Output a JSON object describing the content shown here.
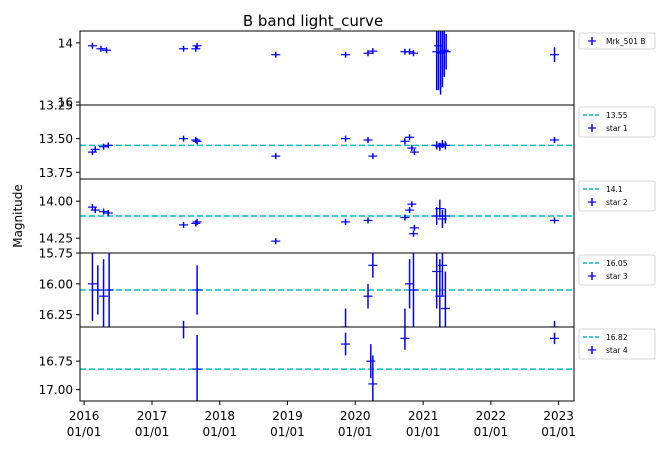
{
  "figure": {
    "title": "B band light_curve",
    "ylabel": "Magnitude"
  },
  "chart_data": [
    {
      "type": "scatter",
      "panel": "Mrk_501 B",
      "ylim": [
        16.1,
        13.6
      ],
      "yticks": [
        14,
        16
      ],
      "grid": false,
      "legend_position": "outside-right",
      "series": [
        {
          "name": "Mrk_501 B",
          "color": "#0000ff",
          "marker": "+",
          "points": [
            {
              "x": "2016-02-15",
              "y": 14.1,
              "yerr": 0.02
            },
            {
              "x": "2016-04-01",
              "y": 14.2,
              "yerr": 0.02
            },
            {
              "x": "2016-05-01",
              "y": 14.25,
              "yerr": 0.02
            },
            {
              "x": "2017-06-20",
              "y": 14.2,
              "yerr": 0.02
            },
            {
              "x": "2017-08-25",
              "y": 14.2,
              "yerr": 0.02
            },
            {
              "x": "2017-09-01",
              "y": 14.1,
              "yerr": 0.02
            },
            {
              "x": "2018-10-30",
              "y": 14.4,
              "yerr": 0.02
            },
            {
              "x": "2019-11-10",
              "y": 14.4,
              "yerr": 0.02
            },
            {
              "x": "2020-03-10",
              "y": 14.35,
              "yerr": 0.02
            },
            {
              "x": "2020-04-05",
              "y": 14.28,
              "yerr": 0.02
            },
            {
              "x": "2020-09-25",
              "y": 14.3,
              "yerr": 0.02
            },
            {
              "x": "2020-10-20",
              "y": 14.3,
              "yerr": 0.02
            },
            {
              "x": "2020-11-10",
              "y": 14.35,
              "yerr": 0.02
            },
            {
              "x": "2021-03-15",
              "y": 14.3,
              "yerr": 1.3
            },
            {
              "x": "2021-03-25",
              "y": 14.1,
              "yerr": 1.5
            },
            {
              "x": "2021-04-05",
              "y": 14.35,
              "yerr": 1.4
            },
            {
              "x": "2021-04-15",
              "y": 14.3,
              "yerr": 1.2
            },
            {
              "x": "2021-04-25",
              "y": 14.25,
              "yerr": 0.9
            },
            {
              "x": "2021-05-05",
              "y": 14.3,
              "yerr": 0.6
            },
            {
              "x": "2022-12-10",
              "y": 14.4,
              "yerr": 0.25
            }
          ]
        }
      ]
    },
    {
      "type": "scatter",
      "panel": "star 1",
      "ylim": [
        13.8,
        13.25
      ],
      "yticks": [
        13.25,
        13.5,
        13.75
      ],
      "ytick_labels": [
        "13.25",
        "13.50",
        "13.75"
      ],
      "grid": false,
      "legend_position": "outside-right",
      "hline": {
        "label": "13.55",
        "y": 13.55,
        "color": "#00bfbf",
        "style": "dashed"
      },
      "series": [
        {
          "name": "star 1",
          "color": "#0000ff",
          "marker": "+",
          "points": [
            {
              "x": "2016-02-15",
              "y": 13.6,
              "yerr": 0.02
            },
            {
              "x": "2016-03-01",
              "y": 13.58,
              "yerr": 0.02
            },
            {
              "x": "2016-04-15",
              "y": 13.56,
              "yerr": 0.02
            },
            {
              "x": "2016-05-10",
              "y": 13.55,
              "yerr": 0.02
            },
            {
              "x": "2017-06-20",
              "y": 13.5,
              "yerr": 0.02
            },
            {
              "x": "2017-08-25",
              "y": 13.51,
              "yerr": 0.02
            },
            {
              "x": "2017-09-01",
              "y": 13.52,
              "yerr": 0.02
            },
            {
              "x": "2018-10-30",
              "y": 13.63,
              "yerr": 0.02
            },
            {
              "x": "2019-11-10",
              "y": 13.5,
              "yerr": 0.02
            },
            {
              "x": "2020-03-10",
              "y": 13.51,
              "yerr": 0.02
            },
            {
              "x": "2020-04-05",
              "y": 13.63,
              "yerr": 0.02
            },
            {
              "x": "2020-09-25",
              "y": 13.52,
              "yerr": 0.02
            },
            {
              "x": "2020-10-20",
              "y": 13.49,
              "yerr": 0.02
            },
            {
              "x": "2020-11-01",
              "y": 13.57,
              "yerr": 0.02
            },
            {
              "x": "2020-11-15",
              "y": 13.6,
              "yerr": 0.02
            },
            {
              "x": "2021-03-15",
              "y": 13.55,
              "yerr": 0.03
            },
            {
              "x": "2021-04-01",
              "y": 13.56,
              "yerr": 0.03
            },
            {
              "x": "2021-04-15",
              "y": 13.54,
              "yerr": 0.03
            },
            {
              "x": "2021-05-01",
              "y": 13.55,
              "yerr": 0.03
            },
            {
              "x": "2022-12-10",
              "y": 13.51,
              "yerr": 0.02
            }
          ]
        }
      ]
    },
    {
      "type": "scatter",
      "panel": "star 2",
      "ylim": [
        14.35,
        13.85
      ],
      "yticks": [
        14.0,
        14.25
      ],
      "ytick_labels": [
        "14.00",
        "14.25"
      ],
      "grid": false,
      "legend_position": "outside-right",
      "hline": {
        "label": "14.1",
        "y": 14.1,
        "color": "#00bfbf",
        "style": "dashed"
      },
      "series": [
        {
          "name": "star 2",
          "color": "#0000ff",
          "marker": "+",
          "points": [
            {
              "x": "2016-02-15",
              "y": 14.04,
              "yerr": 0.02
            },
            {
              "x": "2016-03-01",
              "y": 14.06,
              "yerr": 0.02
            },
            {
              "x": "2016-04-15",
              "y": 14.07,
              "yerr": 0.02
            },
            {
              "x": "2016-05-10",
              "y": 14.08,
              "yerr": 0.02
            },
            {
              "x": "2017-06-20",
              "y": 14.16,
              "yerr": 0.02
            },
            {
              "x": "2017-08-25",
              "y": 14.15,
              "yerr": 0.02
            },
            {
              "x": "2017-09-01",
              "y": 14.14,
              "yerr": 0.02
            },
            {
              "x": "2018-10-30",
              "y": 14.27,
              "yerr": 0.02
            },
            {
              "x": "2019-11-10",
              "y": 14.14,
              "yerr": 0.02
            },
            {
              "x": "2020-03-10",
              "y": 14.13,
              "yerr": 0.02
            },
            {
              "x": "2020-09-25",
              "y": 14.11,
              "yerr": 0.02
            },
            {
              "x": "2020-10-20",
              "y": 14.06,
              "yerr": 0.02
            },
            {
              "x": "2020-11-01",
              "y": 14.02,
              "yerr": 0.02
            },
            {
              "x": "2020-11-10",
              "y": 14.22,
              "yerr": 0.02
            },
            {
              "x": "2020-11-15",
              "y": 14.18,
              "yerr": 0.02
            },
            {
              "x": "2021-03-15",
              "y": 14.1,
              "yerr": 0.06
            },
            {
              "x": "2021-04-01",
              "y": 14.05,
              "yerr": 0.06
            },
            {
              "x": "2021-04-15",
              "y": 14.12,
              "yerr": 0.06
            },
            {
              "x": "2021-05-01",
              "y": 14.1,
              "yerr": 0.05
            },
            {
              "x": "2022-12-10",
              "y": 14.13,
              "yerr": 0.02
            }
          ]
        }
      ]
    },
    {
      "type": "scatter",
      "panel": "star 3",
      "ylim": [
        16.35,
        15.75
      ],
      "yticks": [
        15.75,
        16.0,
        16.25
      ],
      "ytick_labels": [
        "15.75",
        "16.00",
        "16.25"
      ],
      "grid": false,
      "legend_position": "outside-right",
      "hline": {
        "label": "16.05",
        "y": 16.05,
        "color": "#00bfbf",
        "style": "dashed"
      },
      "series": [
        {
          "name": "star 3",
          "color": "#0000ff",
          "marker": "+",
          "points": [
            {
              "x": "2016-02-15",
              "y": 16.0,
              "yerr": 0.3
            },
            {
              "x": "2016-03-15",
              "y": 16.05,
              "yerr": 0.2
            },
            {
              "x": "2016-04-15",
              "y": 16.1,
              "yerr": 0.3
            },
            {
              "x": "2016-05-15",
              "y": 16.05,
              "yerr": 0.35
            },
            {
              "x": "2017-06-20",
              "y": 16.4,
              "yerr": 0.1
            },
            {
              "x": "2017-09-01",
              "y": 16.05,
              "yerr": 0.2
            },
            {
              "x": "2019-11-10",
              "y": 16.35,
              "yerr": 0.15
            },
            {
              "x": "2020-03-10",
              "y": 16.1,
              "yerr": 0.1
            },
            {
              "x": "2020-04-05",
              "y": 15.85,
              "yerr": 0.1
            },
            {
              "x": "2020-09-25",
              "y": 16.35,
              "yerr": 0.15
            },
            {
              "x": "2020-10-20",
              "y": 16.0,
              "yerr": 0.2
            },
            {
              "x": "2020-11-10",
              "y": 16.05,
              "yerr": 0.3
            },
            {
              "x": "2021-03-15",
              "y": 15.9,
              "yerr": 0.3
            },
            {
              "x": "2021-04-01",
              "y": 16.1,
              "yerr": 0.3
            },
            {
              "x": "2021-04-15",
              "y": 15.85,
              "yerr": 0.25
            },
            {
              "x": "2021-05-01",
              "y": 16.2,
              "yerr": 0.3
            },
            {
              "x": "2022-12-10",
              "y": 16.35,
              "yerr": 0.05
            }
          ]
        }
      ]
    },
    {
      "type": "scatter",
      "panel": "star 4",
      "ylim": [
        17.1,
        16.45
      ],
      "yticks": [
        16.75,
        17.0
      ],
      "ytick_labels": [
        "16.75",
        "17.00"
      ],
      "grid": false,
      "legend_position": "outside-right",
      "hline": {
        "label": "16.82",
        "y": 16.82,
        "color": "#00bfbf",
        "style": "dashed"
      },
      "series": [
        {
          "name": "star 4",
          "color": "#0000ff",
          "marker": "+",
          "points": [
            {
              "x": "2017-06-20",
              "y": 16.45,
              "yerr": 0.1
            },
            {
              "x": "2017-09-01",
              "y": 16.82,
              "yerr": 0.3
            },
            {
              "x": "2019-11-10",
              "y": 16.6,
              "yerr": 0.1
            },
            {
              "x": "2020-03-25",
              "y": 16.75,
              "yerr": 0.15
            },
            {
              "x": "2020-04-05",
              "y": 16.95,
              "yerr": 0.25
            },
            {
              "x": "2020-09-25",
              "y": 16.55,
              "yerr": 0.1
            },
            {
              "x": "2022-12-10",
              "y": 16.55,
              "yerr": 0.05
            }
          ]
        }
      ]
    }
  ],
  "xaxis": {
    "xlim": [
      "2015-12-10",
      "2023-03-25"
    ],
    "ticks": [
      {
        "date": "2016-01-01",
        "label": "2016\n01/01"
      },
      {
        "date": "2017-01-01",
        "label": "2017\n01/01"
      },
      {
        "date": "2018-01-01",
        "label": "2018\n01/01"
      },
      {
        "date": "2019-01-01",
        "label": "2019\n01/01"
      },
      {
        "date": "2020-01-01",
        "label": "2020\n01/01"
      },
      {
        "date": "2021-01-01",
        "label": "2021\n01/01"
      },
      {
        "date": "2022-01-01",
        "label": "2022\n01/01"
      },
      {
        "date": "2023-01-01",
        "label": "2023\n01/01"
      }
    ]
  },
  "colors": {
    "data": "#0000ff",
    "mean_line": "#00bfbf",
    "axes": "#000000"
  }
}
